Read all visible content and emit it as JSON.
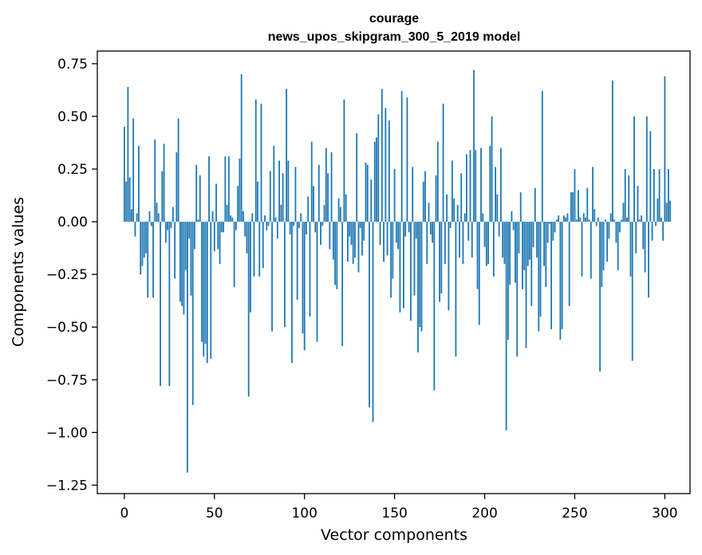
{
  "chart_data": {
    "type": "bar",
    "title": "courage",
    "subtitle": "news_upos_skipgram_300_5_2019 model",
    "xlabel": "Vector components",
    "ylabel": "Components values",
    "xlim": [
      -15,
      314
    ],
    "ylim": [
      -1.29,
      0.81
    ],
    "xticks": [
      0,
      50,
      100,
      150,
      200,
      250,
      300
    ],
    "yticks": [
      0.75,
      0.5,
      0.25,
      0.0,
      -0.25,
      -0.5,
      -0.75,
      -1.0,
      -1.25
    ],
    "ytick_labels": [
      "0.75",
      "0.50",
      "0.25",
      "0.00",
      "−0.25",
      "−0.50",
      "−0.75",
      "−1.00",
      "−1.25"
    ],
    "color": "#1f77b4",
    "values": [
      0.45,
      0.19,
      0.64,
      0.21,
      0.06,
      0.49,
      -0.07,
      0.04,
      0.36,
      -0.25,
      -0.21,
      -0.17,
      -0.15,
      -0.36,
      0.05,
      -0.02,
      -0.36,
      0.39,
      0.09,
      0.04,
      -0.78,
      0.24,
      0.37,
      -0.1,
      -0.04,
      -0.78,
      -0.03,
      0.07,
      -0.27,
      0.33,
      0.49,
      -0.38,
      -0.4,
      -0.44,
      -0.23,
      -1.19,
      -0.08,
      -0.35,
      -0.87,
      -0.13,
      0.27,
      0.01,
      0.22,
      -0.57,
      -0.64,
      -0.58,
      -0.67,
      0.31,
      -0.65,
      0.05,
      -0.14,
      0.18,
      -0.13,
      -0.2,
      -0.05,
      -0.05,
      0.31,
      0.08,
      0.31,
      0.03,
      0.02,
      -0.31,
      -0.04,
      0.17,
      0.3,
      0.7,
      0.05,
      -0.07,
      -0.15,
      -0.83,
      -0.43,
      0.04,
      -0.26,
      0.58,
      0.19,
      -0.26,
      0.56,
      -0.22,
      0.03,
      -0.04,
      -0.02,
      0.24,
      -0.52,
      0.36,
      0.02,
      -0.08,
      0.29,
      0.08,
      0.23,
      -0.5,
      0.63,
      0.29,
      -0.06,
      -0.67,
      -0.02,
      0.26,
      -0.37,
      -0.03,
      0.04,
      -0.53,
      -0.61,
      -0.06,
      0.12,
      -0.45,
      0.38,
      0.17,
      -0.05,
      -0.57,
      0.27,
      -0.11,
      -0.02,
      0.08,
      0.35,
      0.23,
      -0.13,
      0.33,
      -0.18,
      -0.3,
      -0.32,
      0.11,
      0.07,
      -0.59,
      0.58,
      0.13,
      -0.19,
      -0.07,
      -0.11,
      -0.2,
      -0.17,
      0.42,
      -0.24,
      -0.03,
      -0.16,
      -0.09,
      0.28,
      0.27,
      -0.88,
      0.2,
      -0.95,
      0.38,
      0.4,
      0.51,
      -0.11,
      0.63,
      -0.19,
      0.54,
      -0.16,
      0.48,
      -0.36,
      -0.27,
      0.25,
      -0.1,
      -0.13,
      -0.43,
      0.62,
      -0.41,
      -0.07,
      0.59,
      -0.05,
      -0.47,
      0.26,
      -0.35,
      -0.08,
      -0.62,
      -0.5,
      -0.52,
      0.19,
      0.24,
      -0.2,
      0.09,
      -0.06,
      -0.1,
      -0.8,
      0.22,
      0.38,
      -0.38,
      -0.34,
      0.56,
      -0.2,
      0.13,
      -0.42,
      -0.03,
      0.29,
      0.11,
      -0.64,
      0.08,
      -0.17,
      0.23,
      -0.2,
      0.04,
      0.32,
      -0.09,
      0.34,
      -0.17,
      0.72,
      0.34,
      -0.32,
      -0.49,
      0.35,
      0.04,
      -0.12,
      -0.21,
      -0.2,
      0.36,
      0.5,
      -0.26,
      0.26,
      0.13,
      -0.07,
      0.35,
      -0.17,
      -0.2,
      -0.99,
      -0.56,
      -0.3,
      0.05,
      -0.04,
      -0.29,
      -0.64,
      -0.15,
      0.14,
      -0.32,
      -0.23,
      -0.6,
      -0.21,
      -0.18,
      -0.4,
      -0.12,
      0.16,
      -0.17,
      -0.52,
      -0.45,
      0.62,
      -0.21,
      -0.31,
      -0.1,
      -0.01,
      -0.51,
      -0.09,
      -0.05,
      0.01,
      0.03,
      -0.56,
      -0.51,
      0.03,
      0.02,
      0.04,
      -0.4,
      0.14,
      0.14,
      0.25,
      0.01,
      0.15,
      0.02,
      -0.26,
      0.04,
      0.02,
      0.16,
      0.01,
      -0.27,
      0.26,
      0.06,
      -0.02,
      0.02,
      -0.71,
      -0.31,
      -0.23,
      0.01,
      -0.19,
      -0.08,
      0.04,
      0.67,
      0.01,
      -0.1,
      -0.23,
      -0.05,
      0.01,
      0.09,
      0.25,
      0.02,
      0.22,
      -0.26,
      -0.66,
      0.5,
      -0.15,
      0.17,
      0.01,
      0.03,
      -0.13,
      -0.24,
      0.5,
      -0.36,
      0.43,
      -0.09,
      0.25,
      -0.02,
      0.11,
      0.25,
      0.02,
      -0.09,
      0.69,
      0.09,
      0.25,
      0.1
    ]
  }
}
